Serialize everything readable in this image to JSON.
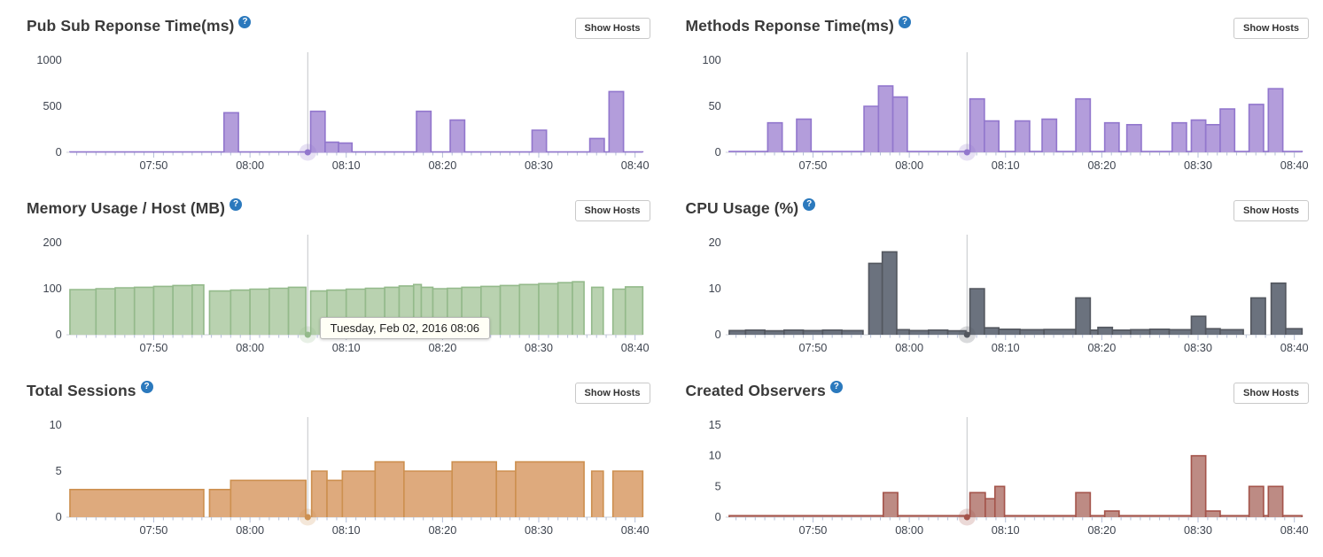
{
  "labels": {
    "show_hosts": "Show Hosts",
    "help_glyph": "?"
  },
  "tooltip": {
    "text": "Tuesday, Feb 02, 2016 08:06"
  },
  "ui_colors": {
    "tick": "#b6c0d8",
    "axis_line": "#ccd1d9",
    "crosshair": "#c4c6ca",
    "axis_text": "#3f4550",
    "help_icon_bg": "#2b79bd",
    "title_text": "#3a3a3a",
    "tooltip_bg": "#fffff6"
  },
  "axis": {
    "x_domain": [
      41.3,
      100.8
    ],
    "x_ticks": [
      {
        "t": 50,
        "label": "07:50"
      },
      {
        "t": 60,
        "label": "08:00"
      },
      {
        "t": 70,
        "label": "08:10"
      },
      {
        "t": 80,
        "label": "08:20"
      },
      {
        "t": 90,
        "label": "08:30"
      },
      {
        "t": 100,
        "label": "08:40"
      }
    ],
    "minor_tick_minutes": 1,
    "crosshair_minute": 66,
    "crosshair_label": "08:06"
  },
  "chart_data": [
    {
      "type": "area",
      "title": "Pub Sub Reponse Time(ms)",
      "ylabel": "ms",
      "y_ticks": [
        0,
        500,
        1000
      ],
      "y_max": 1000,
      "colors": {
        "fill": "#b39ddb",
        "stroke": "#9277cd"
      },
      "segments": [
        [
          41.3,
          100.8,
          4
        ],
        [
          57.3,
          58.8,
          430
        ],
        [
          66.3,
          67.8,
          445
        ],
        [
          67.8,
          69.2,
          110
        ],
        [
          69.2,
          70.6,
          100
        ],
        [
          77.3,
          78.8,
          445
        ],
        [
          80.8,
          82.3,
          350
        ],
        [
          89.3,
          90.8,
          240
        ],
        [
          95.3,
          96.8,
          150
        ],
        [
          97.3,
          98.8,
          660
        ]
      ]
    },
    {
      "type": "area",
      "title": "Methods Reponse Time(ms)",
      "ylabel": "ms",
      "y_ticks": [
        0,
        50,
        100
      ],
      "y_max": 100,
      "colors": {
        "fill": "#b39ddb",
        "stroke": "#9277cd"
      },
      "segments": [
        [
          41.3,
          100.8,
          1
        ],
        [
          45.3,
          46.8,
          32
        ],
        [
          48.3,
          49.8,
          36
        ],
        [
          55.3,
          56.8,
          50
        ],
        [
          56.8,
          58.3,
          72
        ],
        [
          58.3,
          59.8,
          60
        ],
        [
          66.3,
          67.8,
          58
        ],
        [
          67.8,
          69.3,
          34
        ],
        [
          71.0,
          72.5,
          34
        ],
        [
          73.8,
          75.3,
          36
        ],
        [
          77.3,
          78.8,
          58
        ],
        [
          80.3,
          81.8,
          32
        ],
        [
          82.6,
          84.1,
          30
        ],
        [
          87.3,
          88.8,
          32
        ],
        [
          89.3,
          90.8,
          35
        ],
        [
          90.8,
          92.3,
          30
        ],
        [
          92.3,
          93.8,
          47
        ],
        [
          95.3,
          96.8,
          52
        ],
        [
          97.3,
          98.8,
          69
        ]
      ]
    },
    {
      "type": "area",
      "title": "Memory Usage / Host (MB)",
      "ylabel": "MB",
      "y_ticks": [
        0,
        100,
        200
      ],
      "y_max": 200,
      "colors": {
        "fill": "#b9d2b0",
        "stroke": "#94ba8b"
      },
      "segments": [
        [
          41.3,
          44,
          98
        ],
        [
          44,
          46,
          100
        ],
        [
          46,
          48,
          102
        ],
        [
          48,
          50,
          103
        ],
        [
          50,
          52,
          105
        ],
        [
          52,
          54,
          107
        ],
        [
          54,
          55.2,
          108
        ],
        [
          55.8,
          58,
          95
        ],
        [
          58,
          60,
          97
        ],
        [
          60,
          62,
          99
        ],
        [
          62,
          64,
          101
        ],
        [
          64,
          65.8,
          103
        ],
        [
          66.3,
          68,
          95
        ],
        [
          68,
          70,
          97
        ],
        [
          70,
          72,
          99
        ],
        [
          72,
          74,
          101
        ],
        [
          74,
          75.5,
          103
        ],
        [
          75.5,
          77,
          106
        ],
        [
          77,
          77.8,
          109
        ],
        [
          77.8,
          79,
          103
        ],
        [
          79,
          80.5,
          100
        ],
        [
          80.5,
          82,
          101
        ],
        [
          82,
          84,
          103
        ],
        [
          84,
          86,
          105
        ],
        [
          86,
          88,
          107
        ],
        [
          88,
          90,
          109
        ],
        [
          90,
          92,
          111
        ],
        [
          92,
          93.5,
          113
        ],
        [
          93.5,
          94.7,
          115
        ],
        [
          95.5,
          96.7,
          103
        ],
        [
          97.7,
          99,
          99
        ],
        [
          99,
          100.8,
          104
        ]
      ]
    },
    {
      "type": "area",
      "title": "CPU Usage (%)",
      "ylabel": "%",
      "y_ticks": [
        0,
        10,
        20
      ],
      "y_max": 20,
      "colors": {
        "fill": "#6b727e",
        "stroke": "#53575f"
      },
      "segments": [
        [
          41.3,
          43,
          0.9
        ],
        [
          43,
          45,
          1.0
        ],
        [
          45,
          47,
          0.85
        ],
        [
          47,
          49,
          1.0
        ],
        [
          49,
          51,
          0.9
        ],
        [
          51,
          53,
          1.0
        ],
        [
          53,
          55.2,
          0.9
        ],
        [
          55.8,
          57.2,
          15.5
        ],
        [
          57.2,
          58.7,
          18
        ],
        [
          58.7,
          60,
          1.1
        ],
        [
          60,
          62,
          0.9
        ],
        [
          62,
          64,
          1.0
        ],
        [
          64,
          65.9,
          0.85
        ],
        [
          65.9,
          66.3,
          0.4
        ],
        [
          66.3,
          67.8,
          10
        ],
        [
          67.8,
          69.3,
          1.5
        ],
        [
          69.3,
          71.5,
          1.2
        ],
        [
          71.5,
          74,
          1.1
        ],
        [
          74,
          77.3,
          1.15
        ],
        [
          77.3,
          78.8,
          8
        ],
        [
          78.8,
          79.6,
          1.0
        ],
        [
          79.6,
          81.1,
          1.6
        ],
        [
          81.1,
          83,
          1.0
        ],
        [
          83,
          85,
          1.1
        ],
        [
          85,
          87,
          1.2
        ],
        [
          87,
          89.3,
          1.1
        ],
        [
          89.3,
          90.8,
          4
        ],
        [
          90.8,
          92.3,
          1.3
        ],
        [
          92.3,
          94.7,
          1.1
        ],
        [
          95.5,
          97.0,
          8
        ],
        [
          97.6,
          99.1,
          11.2
        ],
        [
          99.1,
          100.8,
          1.3
        ]
      ]
    },
    {
      "type": "area",
      "title": "Total Sessions",
      "ylabel": "sessions",
      "y_ticks": [
        0,
        5,
        10
      ],
      "y_max": 10,
      "colors": {
        "fill": "#deaa7d",
        "stroke": "#cd9050"
      },
      "segments": [
        [
          41.3,
          55.2,
          3
        ],
        [
          55.8,
          58,
          3
        ],
        [
          58,
          65.8,
          4
        ],
        [
          66.4,
          68,
          5
        ],
        [
          68,
          69.6,
          4
        ],
        [
          69.6,
          73,
          5
        ],
        [
          73,
          76,
          6
        ],
        [
          76,
          81,
          5
        ],
        [
          81,
          85.6,
          6
        ],
        [
          85.6,
          87.6,
          5
        ],
        [
          87.6,
          94.7,
          6
        ],
        [
          95.5,
          96.7,
          5
        ],
        [
          97.7,
          100.8,
          5
        ]
      ]
    },
    {
      "type": "area",
      "title": "Created Observers",
      "ylabel": "observers",
      "y_ticks": [
        0,
        5,
        10,
        15
      ],
      "y_max": 15,
      "colors": {
        "fill": "#bd8b84",
        "stroke": "#a4544b"
      },
      "segments": [
        [
          41.3,
          100.8,
          0.25
        ],
        [
          57.3,
          58.8,
          4
        ],
        [
          66.3,
          67.9,
          4
        ],
        [
          67.9,
          68.9,
          3
        ],
        [
          68.9,
          69.9,
          5
        ],
        [
          77.3,
          78.8,
          4
        ],
        [
          80.3,
          81.8,
          1
        ],
        [
          89.3,
          90.8,
          10
        ],
        [
          90.8,
          92.3,
          1
        ],
        [
          95.3,
          96.8,
          5
        ],
        [
          97.3,
          98.8,
          5
        ]
      ]
    }
  ]
}
